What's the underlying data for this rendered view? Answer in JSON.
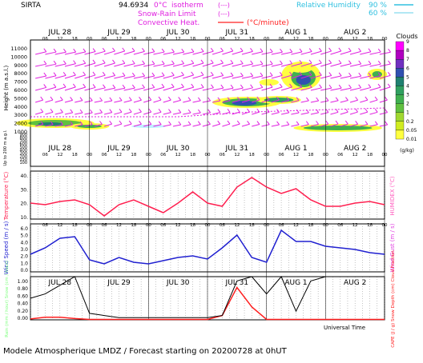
{
  "header": {
    "station": "SIRTA",
    "coord": "94.6934",
    "legend_0c": "0°C",
    "legend_isotherm": "isotherm",
    "legend_snow": "Snow-Rain Limit",
    "legend_conv": "Convective Heat.",
    "legend_conv_unit": "(°C/minute)",
    "legend_rh": "Relative Humidity",
    "rh_values": [
      "90 %",
      "60 %"
    ],
    "line_mark": "(---)",
    "line_mark2": "(---)"
  },
  "days": [
    "JUL 28",
    "JUL 29",
    "JUL 30",
    "JUL 31",
    "AUG  1",
    "AUG  2"
  ],
  "hours": [
    "06",
    "12",
    "18",
    "00"
  ],
  "footer": {
    "title": "Modele Atmospherique LMDZ / Forecast starting on 20200728 at 0hUT",
    "universal_time": "Universal Time"
  },
  "colors": {
    "wind_barb": "#e020e0",
    "temperature": "#ff2050",
    "humidex": "#ff60c0",
    "wind_speed": "#2020d0",
    "wind_gust": "#e040e0",
    "rain": "#80ff80",
    "cape": "#ff2020",
    "cloud_fraction": "#000000"
  },
  "chart_data": [
    {
      "type": "heatmap",
      "name": "clouds-wind",
      "ylabel": "Height (m a.s.l.)",
      "ylabel_low": "Up to 200 m a.g.l.",
      "y_ticks": [
        "11000",
        "10000",
        "9000",
        "8000",
        "7000",
        "6000",
        "5000",
        "4000",
        "3000",
        "2000",
        "1000",
        "900",
        "800",
        "700",
        "600",
        "500",
        "400",
        "300",
        "200",
        "150",
        "100"
      ],
      "colorbar_title": "Clouds",
      "colorbar_unit": "(g/kg)",
      "colorbar_labels": [
        "9",
        "8",
        "7",
        "6",
        "5",
        "4",
        "3",
        "2",
        "1",
        "0.2",
        "0.05",
        "0.01"
      ],
      "colorbar_colors": [
        "#ff00ff",
        "#b000c0",
        "#7030c0",
        "#3050b0",
        "#208070",
        "#30a060",
        "#40b050",
        "#60c040",
        "#a0d830",
        "#d0ec20",
        "#ffff40"
      ]
    },
    {
      "type": "line",
      "name": "temperature",
      "ylabel": "Temperature (°C)",
      "ylabel_right": "HUMIDEX (°C)",
      "y_ticks": [
        "40.",
        "30.",
        "20.",
        "10."
      ],
      "ylim": [
        10,
        40
      ],
      "x_hours": [
        0,
        6,
        12,
        18,
        24,
        30,
        36,
        42,
        48,
        54,
        60,
        66,
        72,
        78,
        84,
        90,
        96,
        102,
        108,
        114,
        120,
        126,
        132,
        138,
        144
      ],
      "series": [
        {
          "values": [
            20,
            19,
            21,
            22,
            19,
            12,
            19,
            22,
            18,
            14,
            20,
            27,
            20,
            18,
            30,
            36,
            30,
            26,
            29,
            22,
            18,
            18,
            20,
            21,
            19
          ]
        }
      ]
    },
    {
      "type": "line",
      "name": "wind",
      "ylabel": "Wind Speed (m / s)",
      "ylabel_right": "Wind Gust (m / s)",
      "y_ticks": [
        "6.0",
        "5.0",
        "4.0",
        "3.0",
        "2.0",
        "1.0",
        "0.0"
      ],
      "ylim": [
        0,
        6
      ],
      "x_hours": [
        0,
        6,
        12,
        18,
        24,
        30,
        36,
        42,
        48,
        54,
        60,
        66,
        72,
        78,
        84,
        90,
        96,
        102,
        108,
        114,
        120,
        126,
        132,
        138,
        144
      ],
      "series": [
        {
          "values": [
            2.2,
            3.0,
            4.2,
            4.4,
            1.5,
            1.0,
            1.8,
            1.2,
            1.0,
            1.4,
            1.8,
            2.0,
            1.6,
            3.0,
            4.6,
            1.8,
            1.2,
            5.2,
            3.8,
            3.8,
            3.2,
            3.0,
            2.8,
            2.4,
            2.2
          ]
        }
      ]
    },
    {
      "type": "line",
      "name": "precip-cape",
      "ylabel": "Rain (mm / hour) Snow (cm / hour)",
      "ylabel_right": "CAPE (J / g) Snow Depth (cm) Cloud Fraction",
      "y_ticks": [
        "1.00",
        "0.80",
        "0.60",
        "0.40",
        "0.20",
        "0.00"
      ],
      "ylim": [
        0,
        1
      ],
      "x_hours": [
        0,
        6,
        12,
        18,
        24,
        30,
        36,
        42,
        48,
        54,
        60,
        66,
        72,
        78,
        84,
        90,
        96,
        102,
        108,
        114,
        120,
        126,
        132,
        138,
        144
      ],
      "series": [
        {
          "values": [
            0.02,
            0.06,
            0.06,
            0.03,
            0.01,
            0.01,
            0.01,
            0.01,
            0.01,
            0.01,
            0.01,
            0.01,
            0.01,
            0.1,
            0.75,
            0.3,
            0.01,
            0.01,
            0.01,
            0.01,
            0.01,
            0.01,
            0.01,
            0.01,
            0.01
          ]
        },
        {
          "values": [
            0.5,
            0.6,
            0.8,
            1.0,
            0.15,
            0.1,
            0.05,
            0.05,
            0.05,
            0.05,
            0.05,
            0.05,
            0.05,
            0.1,
            0.9,
            1.0,
            0.6,
            1.0,
            0.2,
            0.9,
            1.0,
            1.0,
            1.0,
            1.0,
            1.0
          ]
        }
      ]
    }
  ]
}
